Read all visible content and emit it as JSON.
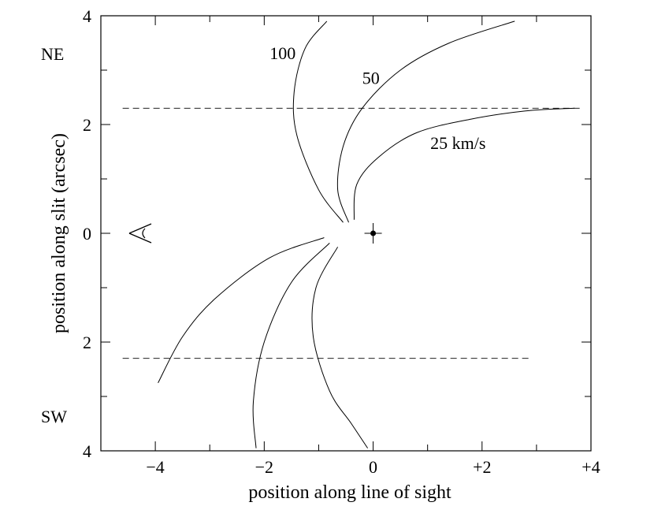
{
  "chart_data": {
    "type": "line",
    "xlabel": "position along line of sight",
    "ylabel": "position along slit (arcsec)",
    "xlim": [
      -5,
      4
    ],
    "ylim": [
      -4,
      4
    ],
    "xticks": [
      {
        "value": -4,
        "label": "−4"
      },
      {
        "value": -2,
        "label": "−2"
      },
      {
        "value": 0,
        "label": "0"
      },
      {
        "value": 2,
        "label": "+2"
      },
      {
        "value": 4,
        "label": "+4"
      }
    ],
    "yticks": [
      {
        "value": 4,
        "label": "4"
      },
      {
        "value": 2,
        "label": "2"
      },
      {
        "value": 0,
        "label": "0"
      },
      {
        "value": -2,
        "label": "2"
      },
      {
        "value": -4,
        "label": "4"
      }
    ],
    "direction_labels": {
      "top": "NE",
      "bottom": "SW"
    },
    "reference_lines": [
      {
        "y": 2.3,
        "x_from": -4.6,
        "x_to": 3.8,
        "style": "dashed"
      },
      {
        "y": -2.3,
        "x_from": -4.6,
        "x_to": 2.9,
        "style": "dashed"
      }
    ],
    "star": {
      "x": 0,
      "y": 0
    },
    "curves": [
      {
        "label": "100",
        "label_pos": [
          -1.9,
          3.2
        ],
        "points": [
          [
            -0.55,
            0.2
          ],
          [
            -1.0,
            0.8
          ],
          [
            -1.4,
            1.8
          ],
          [
            -1.45,
            2.6
          ],
          [
            -1.25,
            3.4
          ],
          [
            -0.85,
            3.9
          ]
        ]
      },
      {
        "label": "50",
        "label_pos": [
          -0.2,
          2.75
        ],
        "points": [
          [
            -0.45,
            0.2
          ],
          [
            -0.65,
            0.8
          ],
          [
            -0.55,
            1.6
          ],
          [
            -0.2,
            2.3
          ],
          [
            0.5,
            3.0
          ],
          [
            1.4,
            3.5
          ],
          [
            2.6,
            3.9
          ]
        ]
      },
      {
        "label": "25 km/s",
        "label_pos": [
          1.05,
          1.55
        ],
        "points": [
          [
            -0.35,
            0.25
          ],
          [
            -0.3,
            0.9
          ],
          [
            0.1,
            1.4
          ],
          [
            0.8,
            1.85
          ],
          [
            1.8,
            2.1
          ],
          [
            2.8,
            2.25
          ],
          [
            3.7,
            2.3
          ]
        ]
      },
      {
        "label": "",
        "points": [
          [
            -0.9,
            -0.08
          ],
          [
            -1.9,
            -0.45
          ],
          [
            -2.9,
            -1.2
          ],
          [
            -3.5,
            -1.9
          ],
          [
            -3.95,
            -2.75
          ]
        ]
      },
      {
        "label": "",
        "points": [
          [
            -0.8,
            -0.18
          ],
          [
            -1.5,
            -0.9
          ],
          [
            -2.0,
            -2.0
          ],
          [
            -2.2,
            -3.1
          ],
          [
            -2.15,
            -3.95
          ]
        ]
      },
      {
        "label": "",
        "points": [
          [
            -0.65,
            -0.25
          ],
          [
            -1.05,
            -1.0
          ],
          [
            -1.1,
            -1.9
          ],
          [
            -0.8,
            -2.9
          ],
          [
            -0.4,
            -3.5
          ],
          [
            -0.1,
            -3.95
          ]
        ]
      }
    ]
  }
}
